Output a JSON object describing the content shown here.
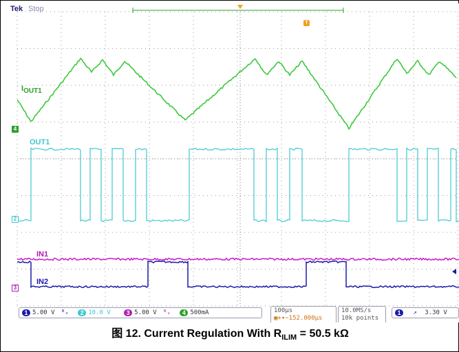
{
  "scope": {
    "brand": "Tek",
    "run_state": "Stop",
    "trigger_marker": "T"
  },
  "traces": {
    "iout_label_prefix": "I",
    "iout_label_sub": "OUT1",
    "out1_label": "OUT1",
    "in1_label": "IN1",
    "in2_label": "IN2",
    "ch4_marker": "4",
    "ch2_marker": "2",
    "ch3_marker": "3"
  },
  "channels": [
    {
      "num": "1",
      "scale": "5.00 V",
      "color": "#1a1aa8"
    },
    {
      "num": "2",
      "scale": "10.0 V",
      "color": "#3cc8d0"
    },
    {
      "num": "3",
      "scale": "5.00 V",
      "color": "#b01ab0"
    },
    {
      "num": "4",
      "scale": "500mA",
      "color": "#2ca02c"
    }
  ],
  "timebase": {
    "time_div": "100µs",
    "offset": "−152.000µs",
    "sample_rate": "10.0MS/s",
    "points": "10k points"
  },
  "trigger": {
    "channel": "1",
    "slope": "↗",
    "level": "3.30 V"
  },
  "caption": {
    "prefix": "图 12. Current Regulation With R",
    "sub": "ILIM",
    "suffix": " = 50.5 kΩ"
  },
  "colors": {
    "iout": "#3cc83c",
    "out1": "#3cc8d0",
    "in1": "#c81ac8",
    "in2": "#1a1aa8",
    "grid": "#9a9a9a"
  }
}
